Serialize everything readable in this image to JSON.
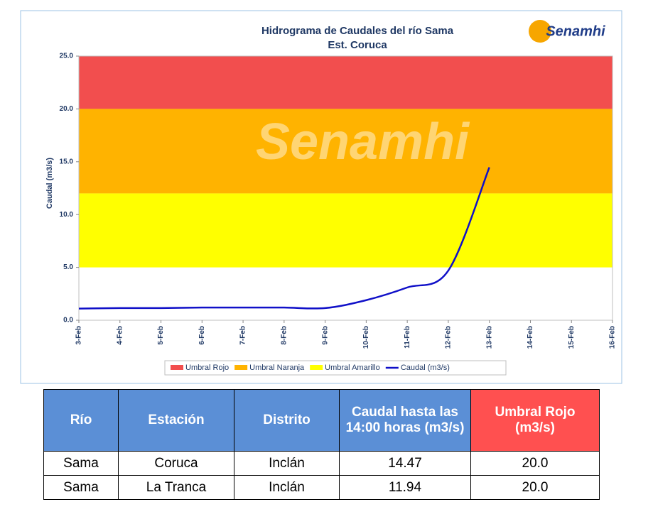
{
  "chart_data": {
    "type": "line",
    "title": "Hidrograma de Caudales del río Sama",
    "subtitle": "Est. Coruca",
    "logo": "Senamhi",
    "watermark": "Senamhi",
    "y_label": "Caudal (m3/s)",
    "categories": [
      "3-Feb",
      "4-Feb",
      "5-Feb",
      "6-Feb",
      "7-Feb",
      "8-Feb",
      "9-Feb",
      "10-Feb",
      "11-Feb",
      "12-Feb",
      "13-Feb",
      "14-Feb",
      "15-Feb",
      "16-Feb"
    ],
    "bands": [
      {
        "name": "Umbral Rojo",
        "color": "#f24e4e",
        "from": 20,
        "to": 25
      },
      {
        "name": "Umbral Naranja",
        "color": "#ffb300",
        "from": 12,
        "to": 20
      },
      {
        "name": "Umbral Amarillo",
        "color": "#ffff00",
        "from": 5,
        "to": 12
      }
    ],
    "series": [
      {
        "name": "Caudal (m3/s)",
        "color": "#1010c8",
        "values": [
          1.1,
          1.15,
          1.15,
          1.2,
          1.2,
          1.2,
          1.15,
          1.9,
          3.1,
          4.7,
          14.47,
          null,
          null,
          null
        ]
      }
    ],
    "ylim": [
      0,
      25
    ],
    "yticks": [
      {
        "value": 0,
        "label": "0.0"
      },
      {
        "value": 5,
        "label": "5.0"
      },
      {
        "value": 10,
        "label": "10.0"
      },
      {
        "value": 15,
        "label": "15.0"
      },
      {
        "value": 20,
        "label": "20.0"
      },
      {
        "value": 25,
        "label": "25.0"
      }
    ],
    "grid": false,
    "legend": "bottom"
  },
  "table": {
    "header": [
      "Río",
      "Estación",
      "Distrito",
      "Caudal hasta las 14:00 horas (m3/s)",
      "Umbral Rojo (m3/s)"
    ],
    "rows": [
      [
        "Sama",
        "Coruca",
        "Inclán",
        "14.47",
        "20.0"
      ],
      [
        "Sama",
        "La Tranca",
        "Inclán",
        "11.94",
        "20.0"
      ]
    ]
  }
}
